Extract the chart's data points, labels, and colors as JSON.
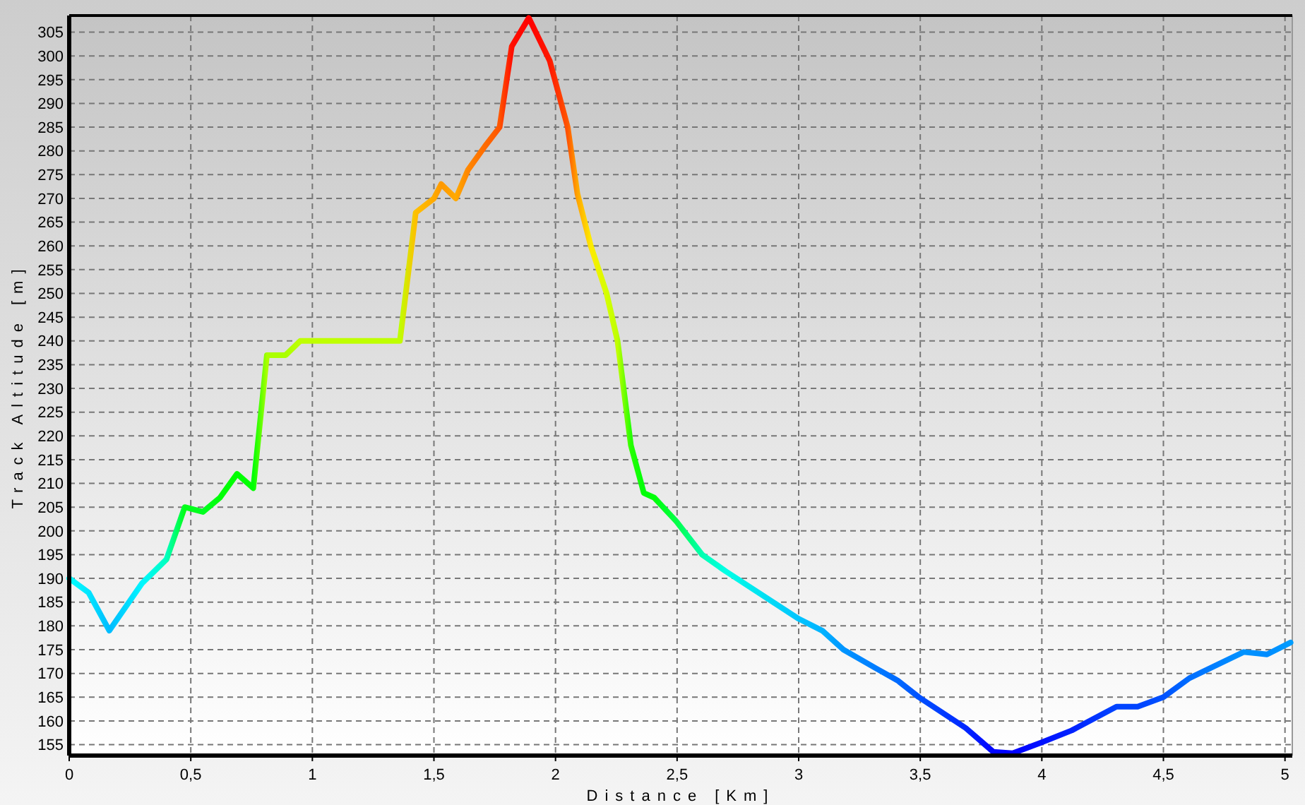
{
  "chart_data": {
    "type": "line",
    "xlabel": "Distance [Km]",
    "ylabel": "Track Altitude [m]",
    "xlim": [
      0,
      5.03
    ],
    "ylim": [
      152.7,
      308.5
    ],
    "xticks": [
      0,
      {
        "value": 0.5,
        "label": "0,5"
      },
      1,
      {
        "value": 1.5,
        "label": "1,5"
      },
      2,
      {
        "value": 2.5,
        "label": "2,5"
      },
      3,
      {
        "value": 3.5,
        "label": "3,5"
      },
      4,
      {
        "value": 4.5,
        "label": "4,5"
      },
      5
    ],
    "yticks": [
      155,
      160,
      165,
      170,
      175,
      180,
      185,
      190,
      195,
      200,
      205,
      210,
      215,
      220,
      225,
      230,
      235,
      240,
      245,
      250,
      255,
      260,
      265,
      270,
      275,
      280,
      285,
      290,
      295,
      300,
      305
    ],
    "grid": true,
    "line_style": "solid",
    "marker": "none",
    "series": [
      {
        "x": [
          0,
          0.08,
          0.165,
          0.3,
          0.4,
          0.475,
          0.55,
          0.62,
          0.69,
          0.757,
          0.813,
          0.89,
          0.95,
          1.36,
          1.425,
          1.5,
          1.53,
          1.59,
          1.64,
          1.71,
          1.77,
          1.82,
          1.89,
          1.976,
          2.05,
          2.09,
          2.145,
          2.21,
          2.255,
          2.31,
          2.363,
          2.406,
          2.497,
          2.603,
          2.7,
          3.0,
          3.097,
          3.184,
          3.32,
          3.407,
          3.494,
          3.687,
          3.8,
          3.88,
          4.0,
          4.123,
          4.307,
          4.394,
          4.5,
          4.607,
          4.83,
          4.926,
          5.023
        ],
        "values": [
          190,
          187,
          179,
          189,
          194,
          205,
          204,
          207,
          212,
          209,
          237,
          237,
          240,
          240,
          267,
          270,
          273,
          270,
          276,
          281,
          285,
          302,
          308,
          299,
          285,
          271,
          260,
          250,
          240,
          218,
          208,
          207,
          202,
          195,
          191.5,
          181.5,
          179,
          175,
          171,
          168.5,
          165,
          158.5,
          153.5,
          153.2,
          155.5,
          158,
          163,
          163,
          165,
          169,
          174.5,
          174,
          176.5
        ],
        "colors": [
          "#00FFFF",
          "#00E6FF",
          "#00BBFF",
          "#00F7FF",
          "#00FFBF",
          "#00FF15",
          "#00FF22",
          "#00FF08",
          "#00FF00",
          "#00FF04",
          "#ABFF00",
          "#AAFF00",
          "#BFFF00",
          "#BFFF00",
          "#FFBF00",
          "#FFAA00",
          "#FF9800",
          "#FFAA00",
          "#FF8600",
          "#FF6B00",
          "#FF5500",
          "#FF0F00",
          "#FF0000",
          "#FF1900",
          "#FF5500",
          "#FFA500",
          "#FFEA00",
          "#D4FF00",
          "#BFFF00",
          "#26FF00",
          "#00FF08",
          "#00FF08",
          "#00FF47",
          "#00FFB2",
          "#00FFE6",
          "#00C4FF",
          "#00B3FF",
          "#0095FF",
          "#007BFF",
          "#006AFF",
          "#0051FF",
          "#0026FF",
          "#0004FF",
          "#0000FF",
          "#0011FF",
          "#0022FF",
          "#0044FF",
          "#0044FF",
          "#0051FF",
          "#006EFF",
          "#0093FF",
          "#008CFF",
          "#009DFF"
        ]
      }
    ]
  }
}
